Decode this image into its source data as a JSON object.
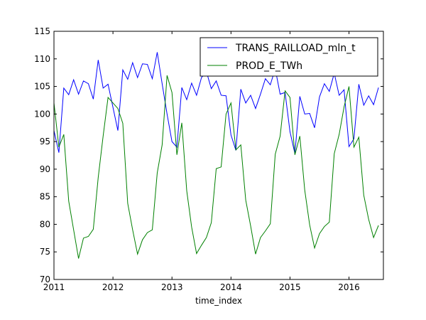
{
  "chart_data": {
    "type": "line",
    "xlabel": "time_index",
    "ylabel": "",
    "xlim": [
      2011.0,
      2016.583
    ],
    "ylim": [
      70,
      115
    ],
    "x_ticks": [
      2011,
      2012,
      2013,
      2014,
      2015,
      2016
    ],
    "x_tick_labels": [
      "2011",
      "2012",
      "2013",
      "2014",
      "2015",
      "2016"
    ],
    "y_ticks": [
      70,
      75,
      80,
      85,
      90,
      95,
      100,
      105,
      110,
      115
    ],
    "y_tick_labels": [
      "70",
      "75",
      "80",
      "85",
      "90",
      "95",
      "100",
      "105",
      "110",
      "115"
    ],
    "grid": false,
    "legend_position": "top-right",
    "x_start_year": 2011,
    "x_step_per_point": 0.08333,
    "series": [
      {
        "name": "TRANS_RAILLOAD_mln_t",
        "color": "#0000ff",
        "values": [
          97.0,
          93.0,
          104.7,
          103.5,
          106.2,
          103.6,
          106.0,
          105.5,
          102.7,
          109.8,
          104.7,
          105.4,
          101.2,
          97.0,
          108.0,
          106.3,
          109.3,
          106.6,
          109.1,
          109.0,
          106.4,
          111.2,
          105.5,
          100.0,
          95.0,
          94.0,
          104.8,
          102.6,
          105.6,
          103.4,
          106.6,
          107.7,
          104.6,
          106.0,
          103.4,
          103.3,
          96.2,
          93.4,
          104.5,
          102.0,
          103.4,
          101.0,
          103.6,
          106.4,
          105.3,
          108.2,
          103.6,
          103.9,
          96.8,
          92.8,
          103.2,
          100.0,
          100.1,
          97.5,
          103.1,
          105.5,
          104.1,
          107.4,
          103.4,
          104.4,
          94.1,
          95.5,
          105.4,
          101.6,
          103.3,
          101.7,
          104.8
        ]
      },
      {
        "name": "PROD_E_TWh",
        "color": "#008000",
        "values": [
          102.0,
          94.0,
          96.3,
          84.2,
          79.0,
          73.8,
          77.5,
          77.8,
          79.1,
          88.5,
          96.0,
          103.0,
          102.0,
          101.0,
          98.3,
          83.8,
          79.0,
          74.6,
          77.2,
          78.5,
          79.0,
          89.3,
          94.4,
          107.0,
          103.9,
          92.6,
          98.4,
          86.1,
          79.5,
          74.7,
          76.2,
          77.6,
          80.3,
          90.1,
          90.4,
          100.0,
          102.0,
          93.5,
          94.4,
          84.4,
          79.7,
          74.6,
          77.6,
          78.8,
          80.1,
          92.7,
          96.0,
          104.2,
          103.0,
          92.6,
          96.0,
          86.2,
          79.9,
          75.7,
          78.3,
          79.6,
          80.4,
          92.8,
          96.3,
          101.3,
          105.0,
          94.0,
          95.8,
          85.3,
          80.9,
          77.6,
          79.8
        ]
      }
    ]
  }
}
